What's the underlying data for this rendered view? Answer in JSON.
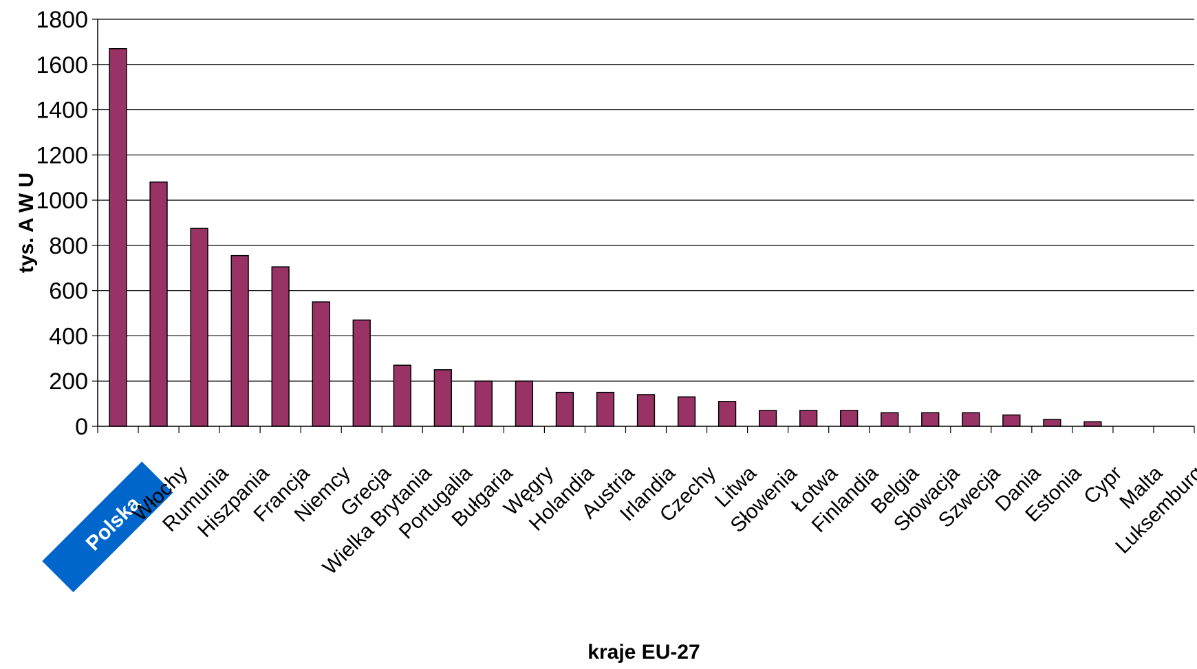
{
  "chart_data": {
    "type": "bar",
    "categories": [
      "Polska",
      "Włochy",
      "Rumunia",
      "Hiszpania",
      "Francja",
      "Niemcy",
      "Grecja",
      "Wielka Brytania",
      "Portugalia",
      "Bułgaria",
      "Węgry",
      "Holandia",
      "Austria",
      "Irlandia",
      "Czechy",
      "Litwa",
      "Słowenia",
      "Łotwa",
      "Finlandia",
      "Belgia",
      "Słowacja",
      "Szwecja",
      "Dania",
      "Estonia",
      "Cypr",
      "Malta",
      "Luksemburg"
    ],
    "values": [
      1670,
      1080,
      875,
      755,
      705,
      550,
      470,
      270,
      250,
      200,
      200,
      150,
      150,
      140,
      130,
      110,
      70,
      70,
      70,
      60,
      60,
      60,
      50,
      30,
      20,
      0,
      0
    ],
    "title": "",
    "xlabel": "kraje EU-27",
    "ylabel": "tys.  A W U",
    "ylim": [
      0,
      1800
    ],
    "yticks": [
      0,
      200,
      400,
      600,
      800,
      1000,
      1200,
      1400,
      1600,
      1800
    ],
    "grid": true,
    "highlighted_category": "Polska",
    "colors": {
      "bar": "#993366",
      "bar_outline": "#000000",
      "highlight_badge": "#0066cc",
      "grid": "#000000"
    }
  }
}
